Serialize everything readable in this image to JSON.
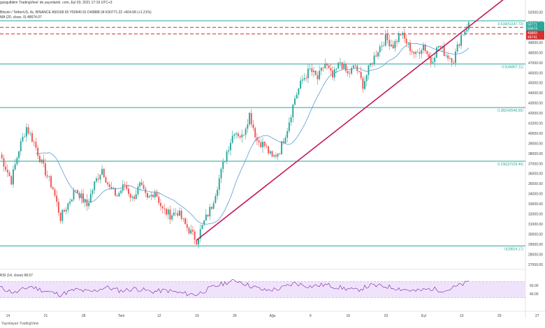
{
  "header": {
    "line1": "gungulbkim TradingView' de yayınlandı. com, Eyl 03, 2021 17:19 UTC+3",
    "line2": "Bitcoin / TetherUS, 4s, BINANCE  A50168.55  Y50940.91  D49888.34  K50771.22  +604.68 (+1.21%)",
    "line3": "MA (20, close, 0)  48674.07",
    "rsi_label": "RSI (14, close)  68.57",
    "watermark": "Yayınlayan TradingView"
  },
  "colors": {
    "up": "#26a69a",
    "down": "#ef5350",
    "ma": "#5b9bd5",
    "fib": "#26a69a",
    "trend": "#c2185b",
    "dashed": "#d32f2f",
    "rsi_line": "#7b1fa2",
    "rsi_bg": "#efe3fb",
    "price_badge": "#26a69a"
  },
  "fib_labels": [
    {
      "text": "0.618(51147.73)",
      "price": 51147.73
    },
    {
      "text": "0.5(46867.11)",
      "price": 46867.11
    },
    {
      "text": "0.382(42546.50)",
      "price": 42546.5
    },
    {
      "text": "0.236(37225.40)",
      "price": 37225.4
    },
    {
      "text": "0(28824.17)",
      "price": 28824.17
    }
  ],
  "price_badges": [
    "50771",
    "50474",
    "49869",
    "49741"
  ],
  "chart_data": {
    "type": "candlestick",
    "price_axis": {
      "ticks": [
        52000,
        51000,
        50000,
        49000,
        48000,
        47000,
        46000,
        45000,
        44000,
        43000,
        42000,
        41000,
        40000,
        39000,
        38000,
        37000,
        36000,
        35000,
        34000,
        33000,
        32000,
        31000,
        30000,
        29000,
        28000,
        27000
      ],
      "range": [
        26500,
        52800
      ],
      "position": "right"
    },
    "date_axis": {
      "labels": [
        "14",
        "21",
        "28",
        "Tem",
        "12",
        "19",
        "26",
        "Ağu",
        "9",
        "16",
        "23",
        "Eyl",
        "13",
        "20",
        "27"
      ],
      "range": [
        0,
        139
      ]
    },
    "close_path": [
      [
        0,
        37900
      ],
      [
        3,
        35300
      ],
      [
        5,
        38400
      ],
      [
        7,
        40600
      ],
      [
        9,
        39100
      ],
      [
        11,
        37000
      ],
      [
        14,
        34500
      ],
      [
        16,
        31600
      ],
      [
        18,
        33000
      ],
      [
        20,
        34500
      ],
      [
        23,
        32800
      ],
      [
        25,
        35000
      ],
      [
        27,
        36500
      ],
      [
        29,
        34500
      ],
      [
        31,
        33800
      ],
      [
        33,
        34900
      ],
      [
        35,
        33500
      ],
      [
        37,
        34800
      ],
      [
        39,
        33400
      ],
      [
        41,
        34300
      ],
      [
        43,
        32400
      ],
      [
        45,
        31900
      ],
      [
        47,
        32200
      ],
      [
        49,
        30900
      ],
      [
        52,
        29400
      ],
      [
        54,
        31200
      ],
      [
        56,
        32800
      ],
      [
        58,
        35500
      ],
      [
        60,
        38200
      ],
      [
        62,
        40300
      ],
      [
        64,
        39600
      ],
      [
        66,
        41900
      ],
      [
        68,
        39300
      ],
      [
        70,
        38800
      ],
      [
        72,
        37500
      ],
      [
        74,
        38300
      ],
      [
        76,
        40500
      ],
      [
        78,
        43500
      ],
      [
        80,
        45300
      ],
      [
        82,
        46300
      ],
      [
        84,
        45400
      ],
      [
        86,
        46900
      ],
      [
        88,
        45500
      ],
      [
        90,
        47100
      ],
      [
        92,
        45800
      ],
      [
        94,
        46700
      ],
      [
        96,
        44800
      ],
      [
        98,
        46800
      ],
      [
        100,
        48300
      ],
      [
        102,
        49400
      ],
      [
        104,
        48700
      ],
      [
        106,
        49900
      ],
      [
        108,
        48700
      ],
      [
        110,
        47700
      ],
      [
        112,
        48800
      ],
      [
        114,
        47100
      ],
      [
        116,
        48700
      ],
      [
        118,
        47800
      ],
      [
        120,
        47300
      ],
      [
        122,
        49700
      ],
      [
        124,
        50800
      ]
    ],
    "ma_period": 20,
    "ma_last": 48674.07,
    "fib_levels": [
      {
        "ratio": 0.618,
        "price": 51147.73
      },
      {
        "ratio": 0.5,
        "price": 46867.11
      },
      {
        "ratio": 0.382,
        "price": 42546.5
      },
      {
        "ratio": 0.236,
        "price": 37225.4
      },
      {
        "ratio": 0,
        "price": 28824.17
      }
    ],
    "dashed_levels": [
      50500,
      49850
    ],
    "trendline": {
      "from": [
        52,
        29400
      ],
      "to": [
        135,
        53800
      ]
    },
    "last": {
      "open": 50168.55,
      "high": 50940.91,
      "low": 49888.34,
      "close": 50771.22,
      "change": "+604.68 (+1.21%)"
    },
    "rsi": {
      "period": 14,
      "value": 68.57,
      "band": [
        30,
        70
      ],
      "ticks": [
        60.0,
        40.0
      ],
      "path": [
        [
          0,
          55
        ],
        [
          4,
          42
        ],
        [
          8,
          58
        ],
        [
          12,
          46
        ],
        [
          16,
          38
        ],
        [
          20,
          50
        ],
        [
          24,
          44
        ],
        [
          28,
          56
        ],
        [
          32,
          47
        ],
        [
          36,
          53
        ],
        [
          40,
          45
        ],
        [
          44,
          48
        ],
        [
          48,
          41
        ],
        [
          52,
          38
        ],
        [
          56,
          55
        ],
        [
          60,
          68
        ],
        [
          63,
          72
        ],
        [
          66,
          60
        ],
        [
          70,
          48
        ],
        [
          74,
          52
        ],
        [
          78,
          66
        ],
        [
          82,
          58
        ],
        [
          86,
          62
        ],
        [
          90,
          55
        ],
        [
          94,
          48
        ],
        [
          98,
          60
        ],
        [
          102,
          58
        ],
        [
          106,
          52
        ],
        [
          110,
          46
        ],
        [
          114,
          52
        ],
        [
          118,
          48
        ],
        [
          122,
          62
        ],
        [
          124,
          68.57
        ]
      ]
    }
  }
}
